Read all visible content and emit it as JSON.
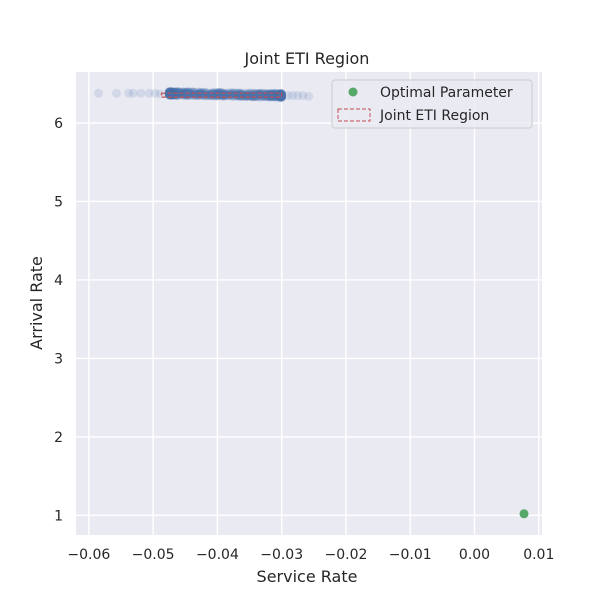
{
  "chart_data": {
    "type": "scatter",
    "title": "Joint ETI Region",
    "xlabel": "Service Rate",
    "ylabel": "Arrival Rate",
    "xlim": [
      -0.062,
      0.0105
    ],
    "ylim": [
      0.75,
      6.65
    ],
    "xticks": [
      -0.06,
      -0.05,
      -0.04,
      -0.03,
      -0.02,
      -0.01,
      0.0,
      0.01
    ],
    "xtick_labels": [
      "−0.06",
      "−0.05",
      "−0.04",
      "−0.03",
      "−0.02",
      "−0.01",
      "0.00",
      "0.01"
    ],
    "yticks": [
      1,
      2,
      3,
      4,
      5,
      6
    ],
    "ytick_labels": [
      "1",
      "2",
      "3",
      "4",
      "5",
      "6"
    ],
    "grid": true,
    "legend_position": "top-right",
    "colors": {
      "background": "#EAEAF2",
      "grid": "#FFFFFF",
      "samples": "#4C72B0",
      "optimal": "#55A868",
      "region": "#C44E52"
    },
    "series": [
      {
        "kind": "samples",
        "points": [
          [
            -0.0585,
            6.38
          ],
          [
            -0.0557,
            6.38
          ],
          [
            -0.0538,
            6.38
          ],
          [
            -0.0531,
            6.38
          ],
          [
            -0.0519,
            6.38
          ],
          [
            -0.0506,
            6.38
          ],
          [
            -0.0497,
            6.38
          ],
          [
            -0.0489,
            6.37
          ],
          [
            -0.0474,
            6.38
          ],
          [
            -0.0467,
            6.37
          ],
          [
            -0.0258,
            6.34
          ],
          [
            -0.0267,
            6.35
          ],
          [
            -0.0275,
            6.35
          ],
          [
            -0.0283,
            6.35
          ],
          [
            -0.029,
            6.35
          ]
        ],
        "cloud": {
          "x_range": [
            -0.0475,
            -0.03
          ],
          "y_center": 6.365,
          "y_spread": 0.05
        }
      },
      {
        "name": "Optimal Parameter",
        "kind": "optimal",
        "points": [
          [
            0.0077,
            1.02
          ]
        ]
      }
    ],
    "region": {
      "name": "Joint ETI Region",
      "x_range": [
        -0.0487,
        -0.03
      ],
      "y_range": [
        6.33,
        6.38
      ]
    },
    "legend": [
      {
        "label": "Optimal Parameter",
        "marker": "dot"
      },
      {
        "label": "Joint ETI Region",
        "marker": "dashed-box"
      }
    ]
  }
}
